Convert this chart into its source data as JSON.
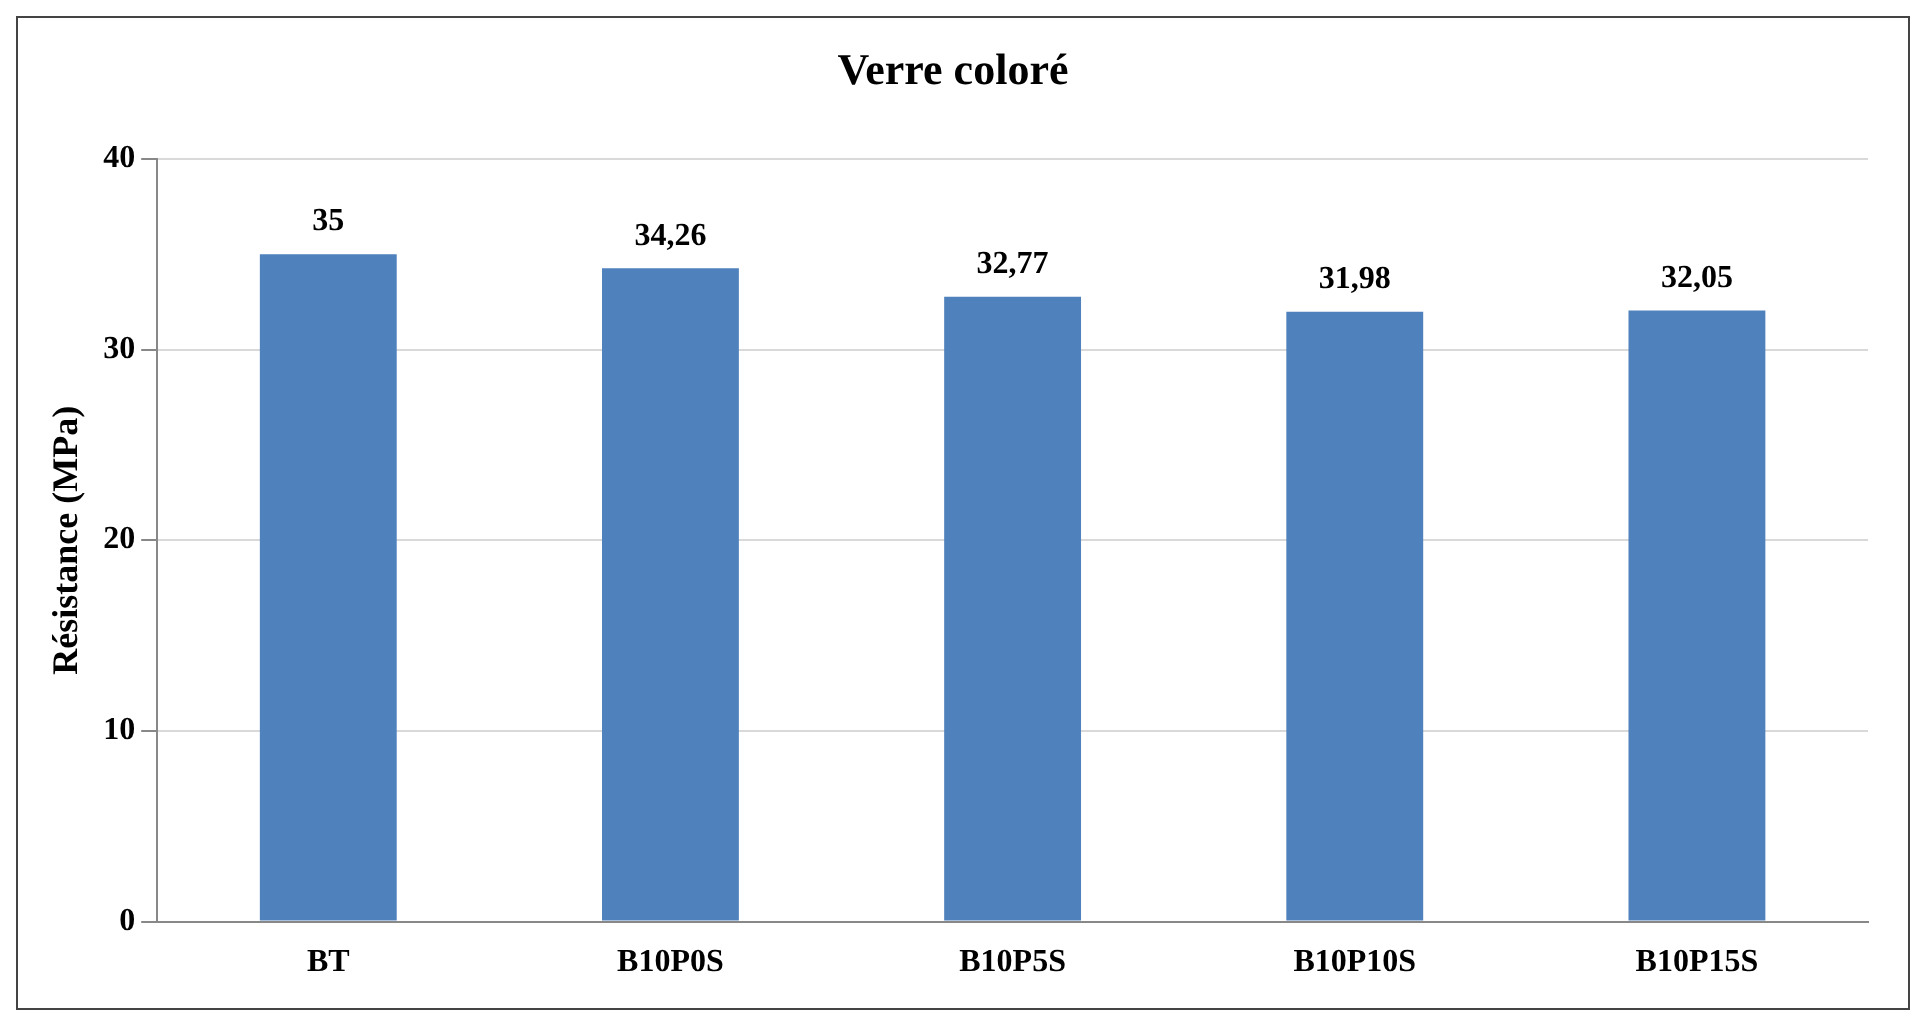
{
  "chart_data": {
    "type": "bar",
    "title": "Verre coloré",
    "ylabel": "Résistance (MPa)",
    "categories": [
      "BT",
      "B10P0S",
      "B10P5S",
      "B10P10S",
      "B10P15S"
    ],
    "values": [
      35,
      34.26,
      32.77,
      31.98,
      32.05
    ],
    "value_labels": [
      "35",
      "34,26",
      "32,77",
      "31,98",
      "32,05"
    ],
    "color": "#4f81bd",
    "ylim": [
      0,
      40
    ],
    "yticks": [
      0,
      10,
      20,
      30,
      40
    ],
    "grid": "y",
    "legend": false
  }
}
